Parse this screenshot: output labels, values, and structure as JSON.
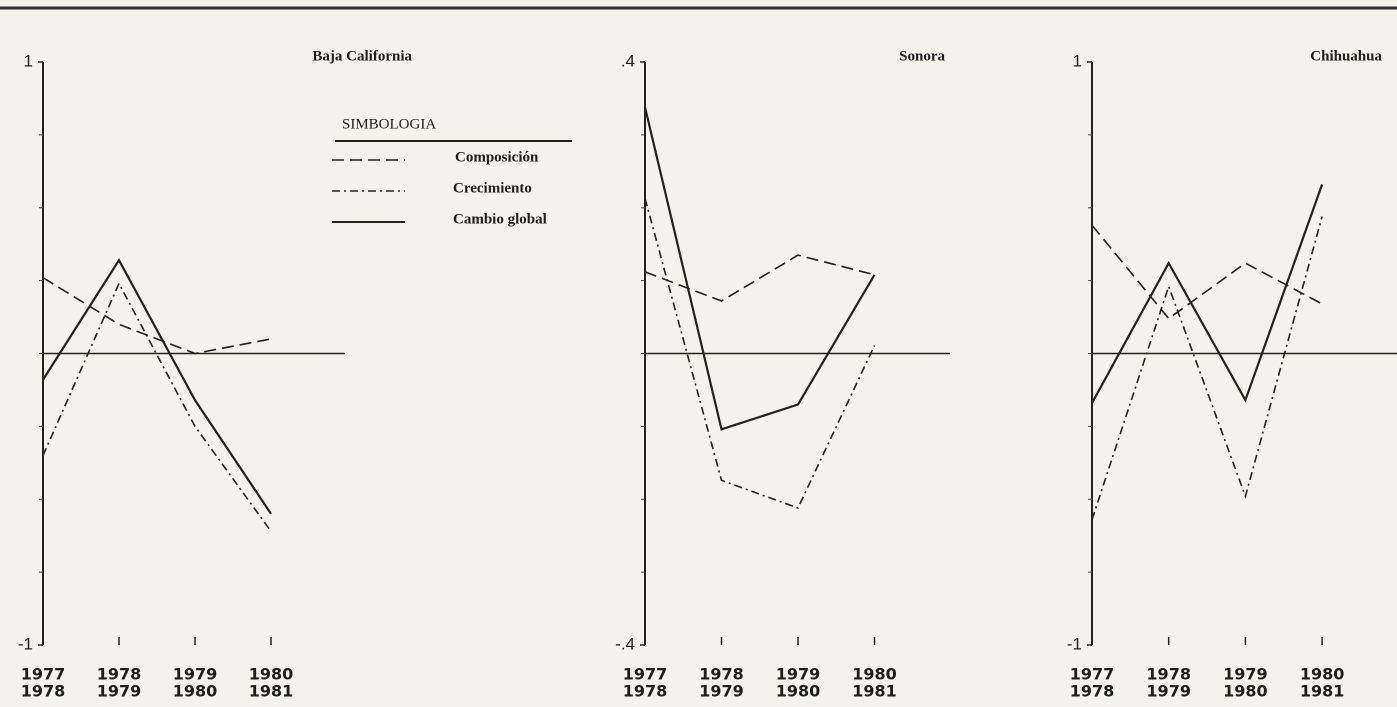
{
  "chart_data": [
    {
      "type": "line",
      "title": "Baja California",
      "legend_title": "SIMBOLOGIA",
      "categories": [
        [
          "1977",
          "1978"
        ],
        [
          "1978",
          "1979"
        ],
        [
          "1979",
          "1980"
        ],
        [
          "1980",
          "1981"
        ]
      ],
      "ylim": [
        -1,
        1
      ],
      "yticks": [
        -1,
        1
      ],
      "yminorticks": [
        -0.75,
        -0.5,
        -0.25,
        0,
        0.25,
        0.5,
        0.75
      ],
      "series": [
        {
          "name": "Composición",
          "dash": "dashed",
          "color": "#222222",
          "values": [
            0.26,
            0.1,
            0.0,
            0.05
          ]
        },
        {
          "name": "Crecimiento",
          "dash": "dashdot",
          "color": "#222222",
          "values": [
            -0.35,
            0.24,
            -0.25,
            -0.61
          ]
        },
        {
          "name": "Cambio global",
          "dash": "solid",
          "color": "#222222",
          "values": [
            -0.09,
            0.32,
            -0.16,
            -0.55
          ]
        }
      ]
    },
    {
      "type": "line",
      "title": "Sonora",
      "categories": [
        [
          "1977",
          "1978"
        ],
        [
          "1978",
          "1979"
        ],
        [
          "1979",
          "1980"
        ],
        [
          "1980",
          "1981"
        ]
      ],
      "ylim": [
        -0.4,
        0.4
      ],
      "yticks": [
        {
          "value": -0.4,
          "label": "-.4"
        },
        {
          "value": 0.4,
          "label": ".4"
        }
      ],
      "yminorticks": [
        -0.3,
        -0.2,
        -0.1,
        0,
        0.1,
        0.2,
        0.3
      ],
      "series": [
        {
          "dash": "dashed",
          "color": "#222222",
          "values": [
            0.112,
            0.072,
            0.135,
            0.108
          ]
        },
        {
          "dash": "dashdot",
          "color": "#222222",
          "values": [
            0.213,
            -0.174,
            -0.212,
            0.011
          ]
        },
        {
          "dash": "solid",
          "color": "#222222",
          "values": [
            0.338,
            -0.104,
            -0.07,
            0.108
          ]
        }
      ]
    },
    {
      "type": "line",
      "title": "Chihuahua",
      "categories": [
        [
          "1977",
          "1978"
        ],
        [
          "1978",
          "1979"
        ],
        [
          "1979",
          "1980"
        ],
        [
          "1980",
          "1981"
        ]
      ],
      "ylim": [
        -1,
        1
      ],
      "yticks": [
        -1,
        1
      ],
      "yminorticks": [
        -0.75,
        -0.5,
        -0.25,
        0,
        0.25,
        0.5,
        0.75
      ],
      "series": [
        {
          "dash": "dashed",
          "color": "#222222",
          "values": [
            0.44,
            0.12,
            0.31,
            0.17
          ]
        },
        {
          "dash": "dashdot",
          "color": "#222222",
          "values": [
            -0.57,
            0.23,
            -0.49,
            0.47
          ]
        },
        {
          "dash": "solid",
          "color": "#222222",
          "values": [
            -0.17,
            0.31,
            -0.16,
            0.58
          ]
        }
      ]
    }
  ]
}
